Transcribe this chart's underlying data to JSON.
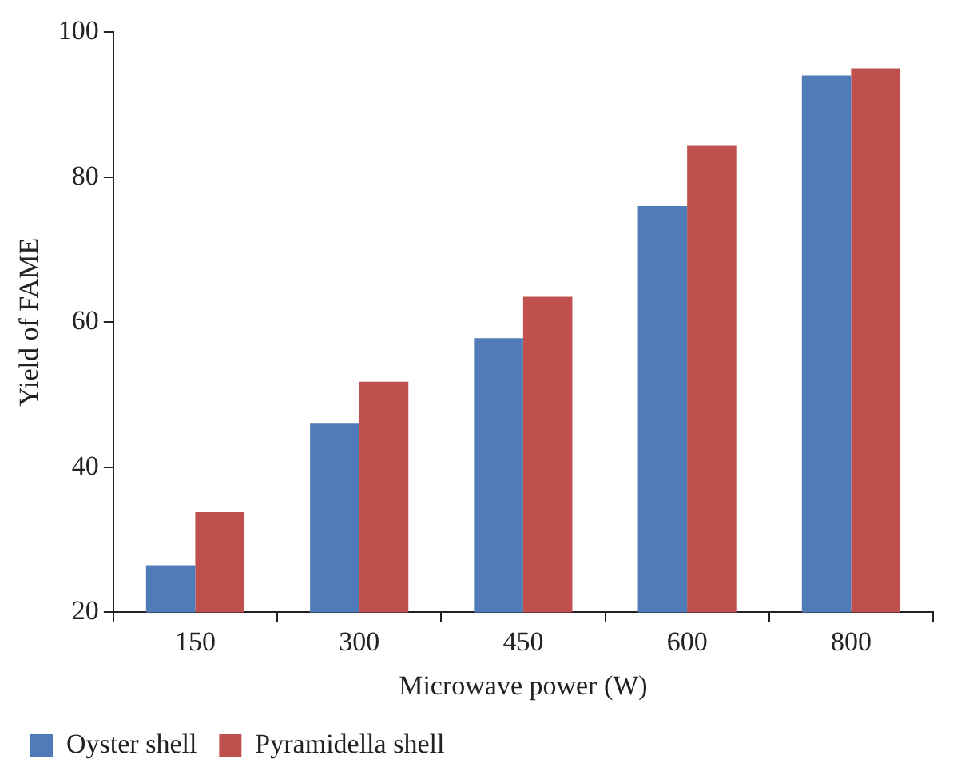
{
  "chart_data": {
    "type": "bar",
    "xlabel": "Microwave power (W)",
    "ylabel": "Yield of FAME",
    "categories": [
      "150",
      "300",
      "450",
      "600",
      "800"
    ],
    "series": [
      {
        "name": "Oyster shell",
        "color": "#4f7bb8",
        "values": [
          26.5,
          46,
          57.8,
          76,
          94
        ]
      },
      {
        "name": "Pyramidella shell",
        "color": "#c0504d",
        "values": [
          33.8,
          51.8,
          63.5,
          84.3,
          95
        ]
      }
    ],
    "ylim": [
      20,
      100
    ],
    "yticks": [
      20,
      40,
      60,
      80,
      100
    ],
    "grid": false,
    "legend": "bottom left"
  }
}
